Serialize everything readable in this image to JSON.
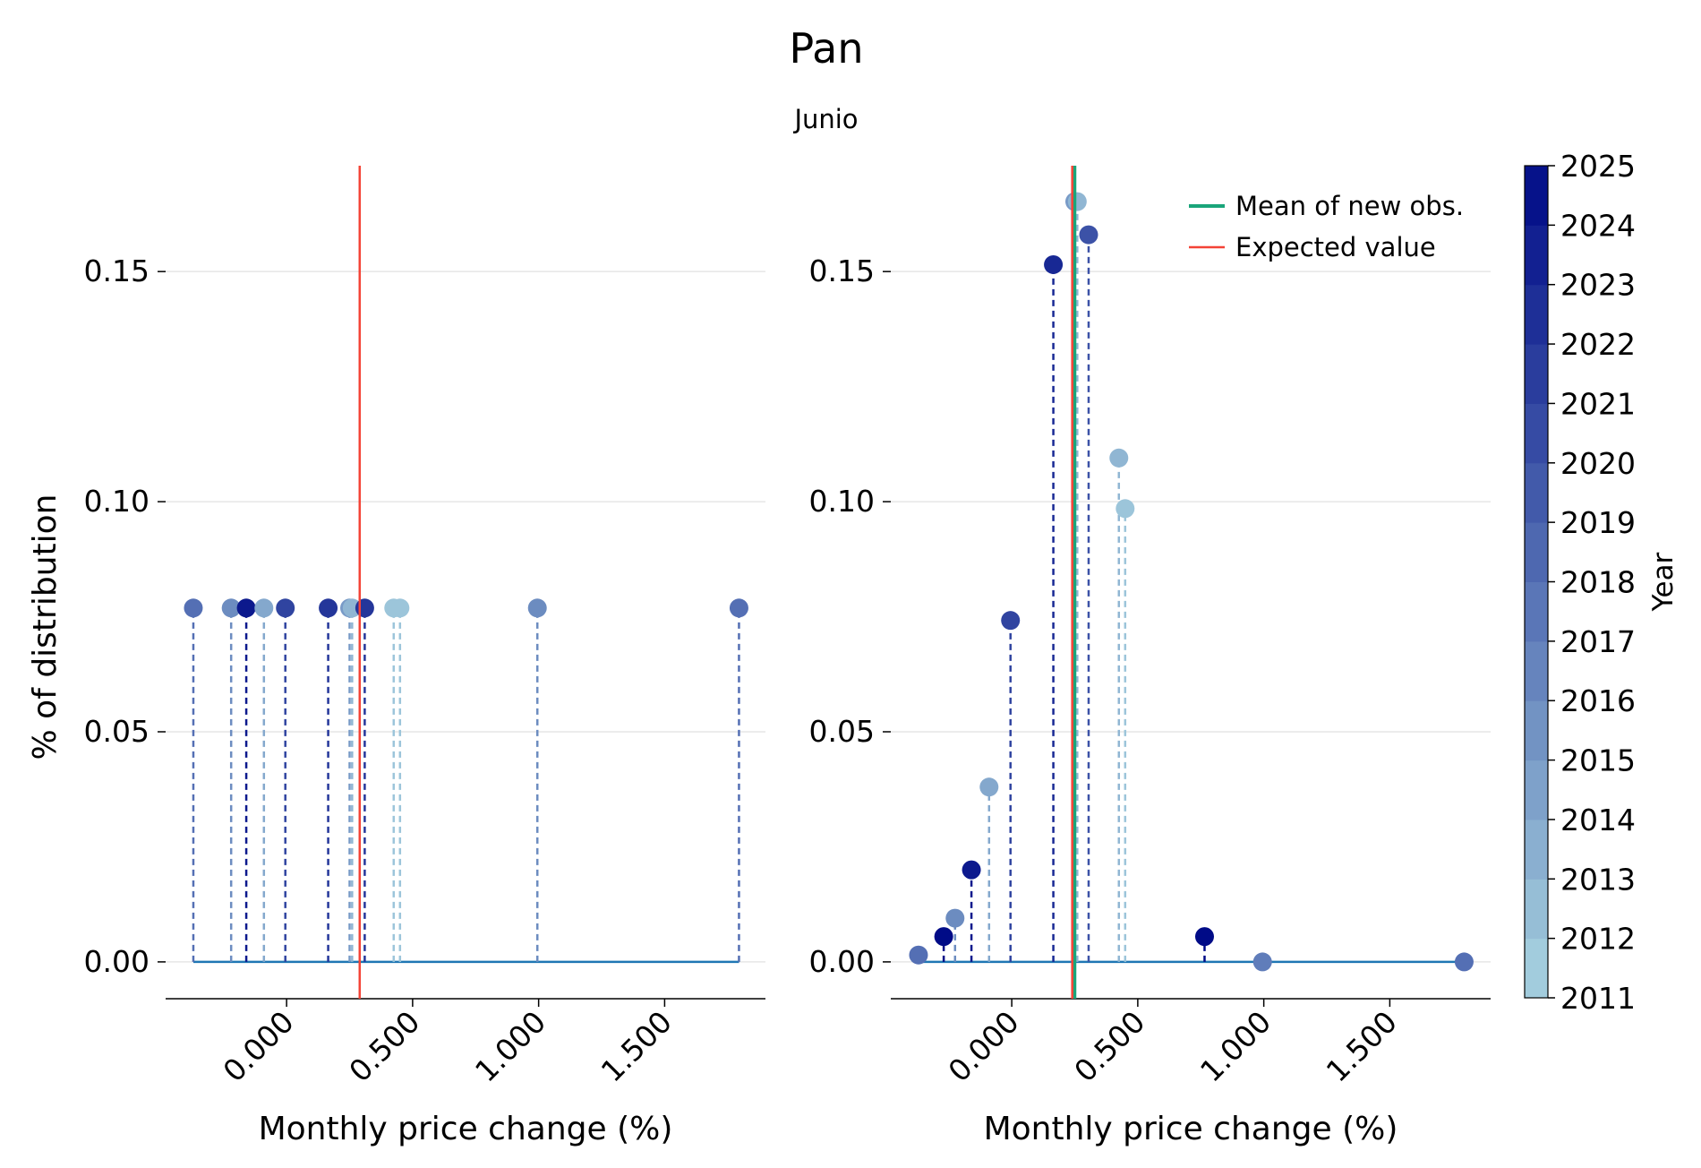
{
  "chart_data": {
    "type": "scatter",
    "title": "Pan",
    "subtitle": "Junio",
    "panels": [
      {
        "name": "left",
        "xlabel": "Monthly price change (%)",
        "ylabel": "% of distribution",
        "x_ticks": [
          0.0,
          0.5,
          1.0,
          1.5
        ],
        "x_tick_labels": [
          "0.000",
          "0.500",
          "1.000",
          "1.500"
        ],
        "y_ticks": [
          0.0,
          0.05,
          0.1,
          0.15
        ],
        "y_tick_labels": [
          "0.00",
          "0.05",
          "0.10",
          "0.15"
        ],
        "xlim": [
          -0.48,
          1.9
        ],
        "ylim": [
          -0.008,
          0.173
        ],
        "grid": "horizontal",
        "expected_value": 0.29,
        "points": [
          {
            "x": -0.37,
            "y": 0.0769,
            "year": 2018
          },
          {
            "x": -0.22,
            "y": 0.0769,
            "year": 2016
          },
          {
            "x": -0.16,
            "y": 0.0769,
            "year": 2024
          },
          {
            "x": -0.09,
            "y": 0.0769,
            "year": 2014
          },
          {
            "x": -0.005,
            "y": 0.0769,
            "year": 2021
          },
          {
            "x": 0.165,
            "y": 0.0769,
            "year": 2022
          },
          {
            "x": 0.25,
            "y": 0.0769,
            "year": 2015
          },
          {
            "x": 0.26,
            "y": 0.0769,
            "year": 2013
          },
          {
            "x": 0.31,
            "y": 0.0769,
            "year": 2022
          },
          {
            "x": 0.425,
            "y": 0.0769,
            "year": 2012
          },
          {
            "x": 0.45,
            "y": 0.0769,
            "year": 2012
          },
          {
            "x": 0.995,
            "y": 0.0769,
            "year": 2016
          },
          {
            "x": 1.795,
            "y": 0.0769,
            "year": 2018
          }
        ]
      },
      {
        "name": "right",
        "xlabel": "Monthly price change (%)",
        "ylabel": "",
        "x_ticks": [
          0.0,
          0.5,
          1.0,
          1.5
        ],
        "x_tick_labels": [
          "0.000",
          "0.500",
          "1.000",
          "1.500"
        ],
        "y_ticks": [
          0.0,
          0.05,
          0.1,
          0.15
        ],
        "y_tick_labels": [
          "0.00",
          "0.05",
          "0.10",
          "0.15"
        ],
        "xlim": [
          -0.48,
          1.9
        ],
        "ylim": [
          -0.008,
          0.173
        ],
        "grid": "horizontal",
        "expected_value": 0.24,
        "mean_new_obs": 0.25,
        "legend": [
          "Mean of new obs.",
          "Expected value"
        ],
        "legend_position": "top-right",
        "points": [
          {
            "x": -0.37,
            "y": 0.0015,
            "year": 2018
          },
          {
            "x": -0.27,
            "y": 0.0055,
            "year": 2025
          },
          {
            "x": -0.225,
            "y": 0.0095,
            "year": 2016
          },
          {
            "x": -0.16,
            "y": 0.02,
            "year": 2024
          },
          {
            "x": -0.09,
            "y": 0.038,
            "year": 2014
          },
          {
            "x": -0.005,
            "y": 0.0742,
            "year": 2021
          },
          {
            "x": 0.165,
            "y": 0.1515,
            "year": 2023
          },
          {
            "x": 0.25,
            "y": 0.1652,
            "year": 2015
          },
          {
            "x": 0.26,
            "y": 0.1652,
            "year": 2013
          },
          {
            "x": 0.305,
            "y": 0.158,
            "year": 2020
          },
          {
            "x": 0.425,
            "y": 0.1095,
            "year": 2013
          },
          {
            "x": 0.45,
            "y": 0.0985,
            "year": 2012
          },
          {
            "x": 0.765,
            "y": 0.0055,
            "year": 2025
          },
          {
            "x": 0.995,
            "y": 0.0,
            "year": 2017
          },
          {
            "x": 1.795,
            "y": 0.0,
            "year": 2018
          }
        ]
      }
    ],
    "colorbar": {
      "label": "Year",
      "min": 2011,
      "max": 2025,
      "tick_labels": [
        "2011",
        "2012",
        "2013",
        "2014",
        "2015",
        "2016",
        "2017",
        "2018",
        "2019",
        "2020",
        "2021",
        "2022",
        "2023",
        "2024",
        "2025"
      ]
    },
    "colors": {
      "expected_value": "#f44336",
      "mean_new_obs": "#1aa57a",
      "baseline": "#1f77b4",
      "grid": "#e6e6e6",
      "year_low": "#a8d3e0",
      "year_high": "#000b87"
    }
  }
}
